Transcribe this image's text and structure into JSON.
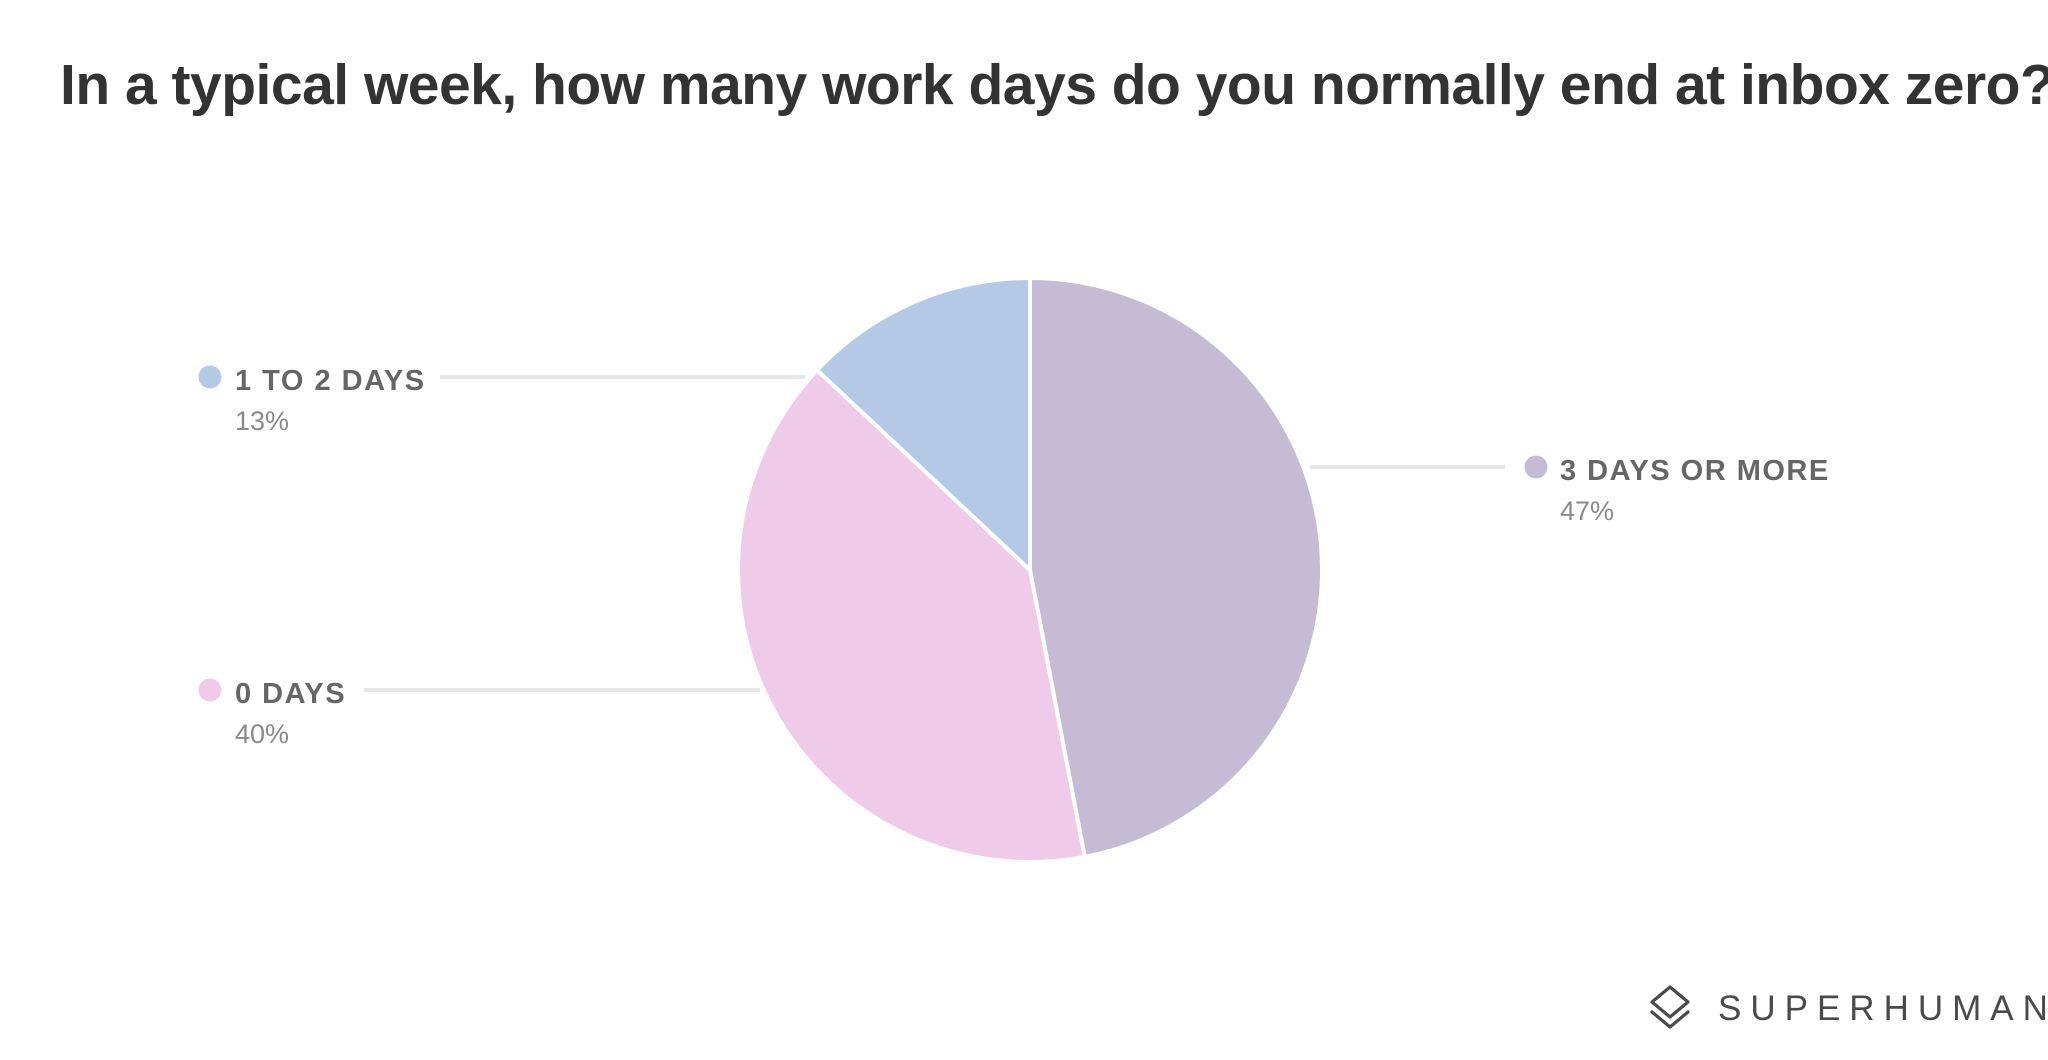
{
  "chart_data": {
    "type": "pie",
    "title": "In a typical week, how many work days do you normally end at inbox zero?",
    "slices": [
      {
        "label": "3 DAYS OR MORE",
        "value": 47,
        "value_label": "47%",
        "color": "#c5bbd4"
      },
      {
        "label": "0 DAYS",
        "value": 40,
        "value_label": "40%",
        "color": "#efcbe9"
      },
      {
        "label": "1 TO 2 DAYS",
        "value": 13,
        "value_label": "13%",
        "color": "#b4c9e6"
      }
    ],
    "legend": "callout-labels"
  },
  "branding": {
    "name": "SUPERHUMAN",
    "icon": "superhuman-logo-icon"
  },
  "colors": {
    "title_text": "#333333",
    "label_text": "#666666",
    "percent_text": "#8a8a8a",
    "leader_line": "#e6e6e6",
    "slice_border": "#ffffff"
  }
}
